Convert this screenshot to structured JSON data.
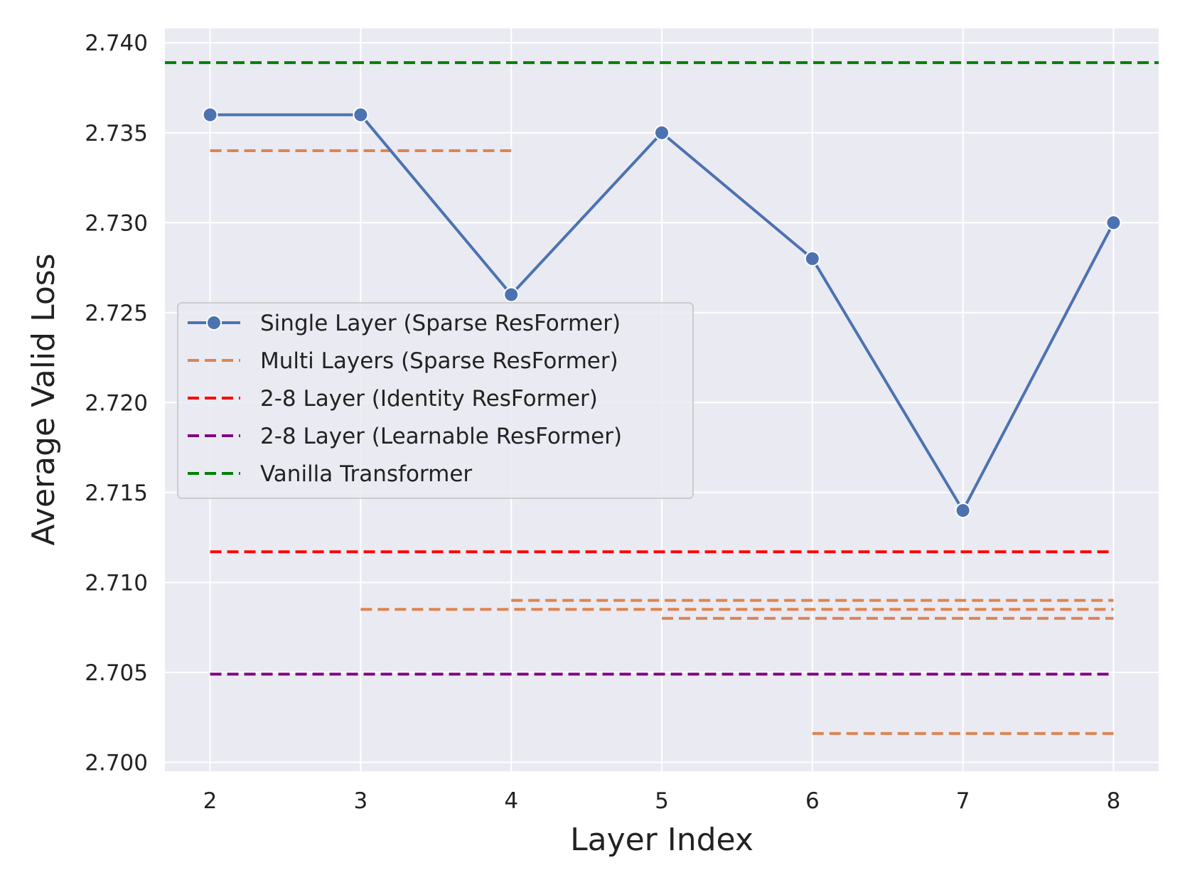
{
  "chart_data": {
    "type": "line",
    "xlabel": "Layer Index",
    "ylabel": "Average Valid Loss",
    "xlim": [
      1.7,
      8.3
    ],
    "ylim": [
      2.6995,
      2.7408
    ],
    "x_ticks": [
      2,
      3,
      4,
      5,
      6,
      7,
      8
    ],
    "y_ticks": [
      2.7,
      2.705,
      2.71,
      2.715,
      2.72,
      2.725,
      2.73,
      2.735,
      2.74
    ],
    "y_tick_labels": [
      "2.700",
      "2.705",
      "2.710",
      "2.715",
      "2.720",
      "2.725",
      "2.730",
      "2.735",
      "2.740"
    ],
    "grid": true,
    "background": "#eaeaf2",
    "legend_position": "center-left",
    "series": [
      {
        "name": "Single Layer (Sparse ResFormer)",
        "style": "solid-marker",
        "color": "#4c72b0",
        "x": [
          2,
          3,
          4,
          5,
          6,
          7,
          8
        ],
        "y": [
          2.736,
          2.736,
          2.726,
          2.735,
          2.728,
          2.714,
          2.73
        ]
      },
      {
        "name": "Multi Layers (Sparse ResFormer)",
        "style": "dashed",
        "color": "#dd8452",
        "segments": [
          {
            "x": [
              2,
              4
            ],
            "y": 2.734
          },
          {
            "x": [
              3,
              8
            ],
            "y": 2.7085
          },
          {
            "x": [
              4,
              8
            ],
            "y": 2.709
          },
          {
            "x": [
              5,
              8
            ],
            "y": 2.708
          },
          {
            "x": [
              6,
              8
            ],
            "y": 2.7016
          }
        ]
      },
      {
        "name": "2-8 Layer (Identity ResFormer)",
        "style": "dashed",
        "color": "#ff0000",
        "segments": [
          {
            "x": [
              2,
              8
            ],
            "y": 2.7117
          }
        ]
      },
      {
        "name": "2-8 Layer (Learnable ResFormer)",
        "style": "dashed",
        "color": "#800080",
        "segments": [
          {
            "x": [
              2,
              8
            ],
            "y": 2.7049
          }
        ]
      },
      {
        "name": "Vanilla Transformer",
        "style": "dashed",
        "color": "#008000",
        "segments": [
          {
            "x": [
              1.7,
              8.3
            ],
            "y": 2.7389
          }
        ]
      }
    ]
  }
}
